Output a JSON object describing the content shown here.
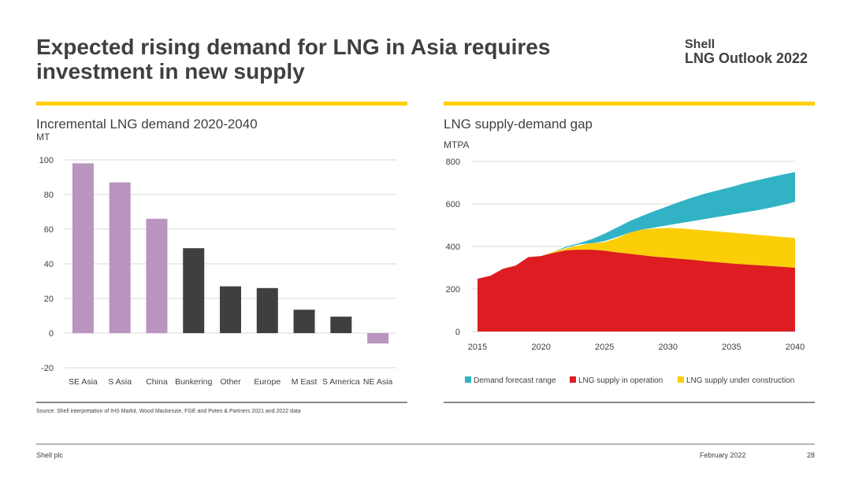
{
  "header": {
    "title": "Expected rising demand for LNG in Asia requires investment in new supply",
    "brand_line1": "Shell",
    "brand_line2": "LNG Outlook 2022"
  },
  "colors": {
    "accent": "#ffcf00",
    "bar_asia": "#b995c0",
    "bar_other": "#3f3f3f",
    "demand_range": "#31b3c5",
    "supply_operation": "#dd1d21",
    "supply_construction": "#fbce07",
    "gridline": "#d9d9d9"
  },
  "left_chart": {
    "title": "Incremental LNG demand 2020-2040",
    "unit": "MT"
  },
  "right_chart": {
    "title": "LNG supply-demand gap",
    "unit": "MTPA"
  },
  "chart_data": [
    {
      "type": "bar",
      "title": "Incremental LNG demand 2020-2040",
      "ylabel": "MT",
      "xlabel": "",
      "ylim": [
        -20,
        100
      ],
      "yticks": [
        -20,
        0,
        20,
        40,
        60,
        80,
        100
      ],
      "grid": true,
      "categories": [
        "SE Asia",
        "S Asia",
        "China",
        "Bunkering",
        "Other",
        "Europe",
        "M East",
        "S America",
        "NE Asia"
      ],
      "values": [
        98,
        87,
        66,
        49,
        27,
        26,
        13.5,
        9.5,
        -6
      ],
      "color_groups": [
        "asia",
        "asia",
        "asia",
        "other",
        "other",
        "other",
        "other",
        "other",
        "asia"
      ]
    },
    {
      "type": "area",
      "title": "LNG supply-demand gap",
      "ylabel": "MTPA",
      "xlabel": "",
      "xlim": [
        2015,
        2040
      ],
      "ylim": [
        0,
        800
      ],
      "xticks": [
        2015,
        2020,
        2025,
        2030,
        2035,
        2040
      ],
      "yticks": [
        0,
        200,
        400,
        600,
        800
      ],
      "grid": true,
      "legend_position": "bottom",
      "x": [
        2015,
        2016,
        2017,
        2018,
        2019,
        2020,
        2021,
        2022,
        2023,
        2024,
        2025,
        2026,
        2027,
        2028,
        2029,
        2030,
        2031,
        2032,
        2033,
        2034,
        2035,
        2036,
        2037,
        2038,
        2039,
        2040
      ],
      "series": [
        {
          "name": "LNG supply in operation",
          "values": [
            248,
            262,
            295,
            310,
            350,
            355,
            370,
            382,
            385,
            385,
            380,
            372,
            366,
            358,
            352,
            347,
            342,
            337,
            330,
            325,
            320,
            316,
            312,
            308,
            304,
            300
          ]
        },
        {
          "name": "LNG supply under construction",
          "values": [
            248,
            262,
            295,
            310,
            350,
            355,
            375,
            392,
            405,
            415,
            420,
            440,
            465,
            480,
            485,
            487,
            485,
            480,
            475,
            470,
            465,
            460,
            455,
            450,
            445,
            440
          ]
        },
        {
          "name": "Demand forecast range",
          "lower": [
            248,
            262,
            295,
            310,
            350,
            355,
            375,
            395,
            410,
            415,
            425,
            445,
            465,
            480,
            490,
            500,
            510,
            520,
            530,
            540,
            550,
            560,
            570,
            582,
            595,
            610
          ],
          "upper": [
            248,
            262,
            295,
            310,
            350,
            355,
            375,
            400,
            415,
            435,
            460,
            490,
            520,
            545,
            568,
            590,
            612,
            632,
            650,
            665,
            680,
            697,
            711,
            725,
            738,
            750
          ]
        }
      ],
      "legend": [
        "Demand forecast range",
        "LNG supply in operation",
        "LNG supply under construction"
      ]
    }
  ],
  "footer": {
    "source": "Source: Shell interpretation of IHS Markit, Wood Mackenzie, FGE and Poten & Partners 2021 and 2022 data",
    "company": "Shell plc",
    "date": "February 2022",
    "page": "28"
  }
}
